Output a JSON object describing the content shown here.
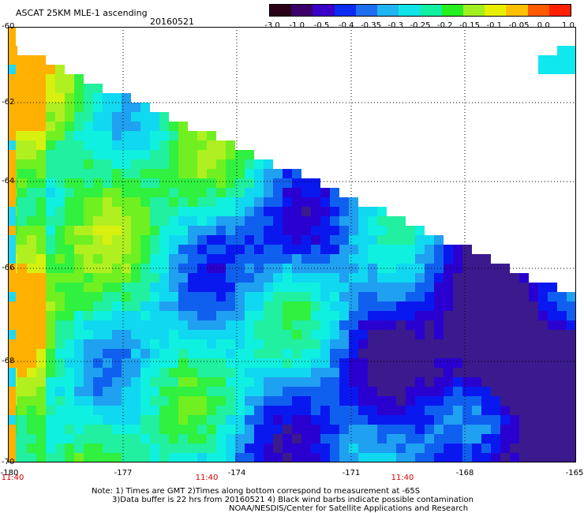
{
  "header": {
    "title": "ASCAT 25KM MLE-1 ascending",
    "date": "20160521"
  },
  "colorbar": {
    "labels": [
      "-3.0",
      "-1.0",
      "-0.5",
      "-0.4",
      "-0.35",
      "-0.3",
      "-0.25",
      "-0.2",
      "-0.15",
      "-0.1",
      "-0.05",
      "0.0",
      "1.0"
    ],
    "colors": [
      "#2a0018",
      "#3c006a",
      "#3a00c8",
      "#0a2cf0",
      "#1e6ef0",
      "#20b4f0",
      "#10e4e8",
      "#10f0a0",
      "#28f020",
      "#a0f020",
      "#e8f000",
      "#ffc000",
      "#ff5a00",
      "#ff2000"
    ]
  },
  "map": {
    "lat_labels": [
      "-60",
      "-62",
      "-64",
      "-66",
      "-68",
      "-70"
    ],
    "lon_labels": [
      "-180",
      "-177",
      "-174",
      "-171",
      "-168",
      "-165"
    ],
    "time_labels": [
      "11:40",
      "11:40",
      "11:40"
    ],
    "grid": true
  },
  "footer": {
    "note1": "Note: 1) Times are GMT 2)Times along bottom correspond to measurement at -65S",
    "note2": "3)Data buffer is 22 hrs from 20160521 4) Black wind barbs indicate possible contamination",
    "note3": "NOAA/NESDIS/Center for Satellite Applications and Research"
  }
}
